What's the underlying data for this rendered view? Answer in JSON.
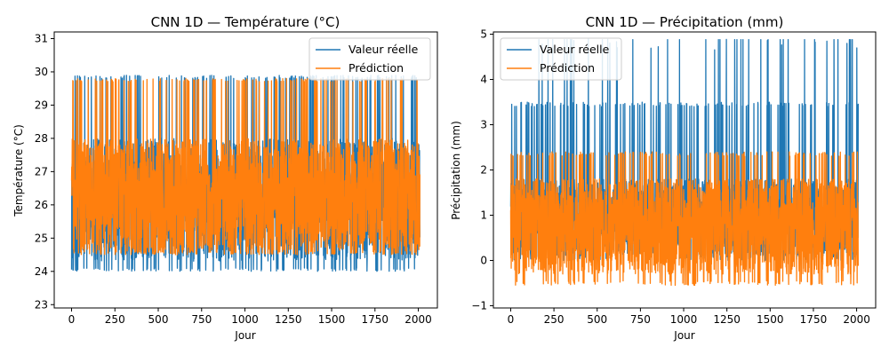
{
  "chart_data": [
    {
      "type": "line",
      "title": "CNN 1D — Température (°C)",
      "xlabel": "Jour",
      "ylabel": "Température (°C)",
      "xlim": [
        -100,
        2110
      ],
      "ylim": [
        22.9,
        31.2
      ],
      "xticks": [
        0,
        250,
        500,
        750,
        1000,
        1250,
        1500,
        1750,
        2000
      ],
      "yticks": [
        23,
        24,
        25,
        26,
        27,
        28,
        29,
        30,
        31
      ],
      "legend_position": "top-right",
      "n_points": 2010,
      "series": [
        {
          "name": "Valeur réelle",
          "color": "#1f77b4",
          "approx_range": [
            23.3,
            30.0
          ],
          "typical_band": [
            24.3,
            28.0
          ],
          "frequent_peak_level": 29.9,
          "frequent_low_level": 24.0
        },
        {
          "name": "Prédiction",
          "color": "#ff7f0e",
          "approx_range": [
            23.7,
            30.8
          ],
          "typical_band": [
            24.5,
            28.0
          ],
          "frequent_peak_level": 29.8,
          "frequent_low_level": 24.5
        }
      ]
    },
    {
      "type": "line",
      "title": "CNN 1D — Précipitation (mm)",
      "xlabel": "Jour",
      "ylabel": "Précipitation (mm)",
      "xlim": [
        -100,
        2110
      ],
      "ylim": [
        -1.05,
        5.05
      ],
      "xticks": [
        0,
        250,
        500,
        750,
        1000,
        1250,
        1500,
        1750,
        2000
      ],
      "yticks": [
        -1,
        0,
        1,
        2,
        3,
        4,
        5
      ],
      "legend_position": "top-left",
      "n_points": 2010,
      "series": [
        {
          "name": "Valeur réelle",
          "color": "#1f77b4",
          "approx_range": [
            0.0,
            4.9
          ],
          "typical_band": [
            0.0,
            1.8
          ],
          "frequent_peak_level": 3.5,
          "max_level": 4.88
        },
        {
          "name": "Prédiction",
          "color": "#ff7f0e",
          "approx_range": [
            -0.75,
            2.6
          ],
          "typical_band": [
            -0.3,
            1.8
          ],
          "frequent_peak_level": 2.4,
          "frequent_low_level": -0.55
        }
      ]
    }
  ]
}
